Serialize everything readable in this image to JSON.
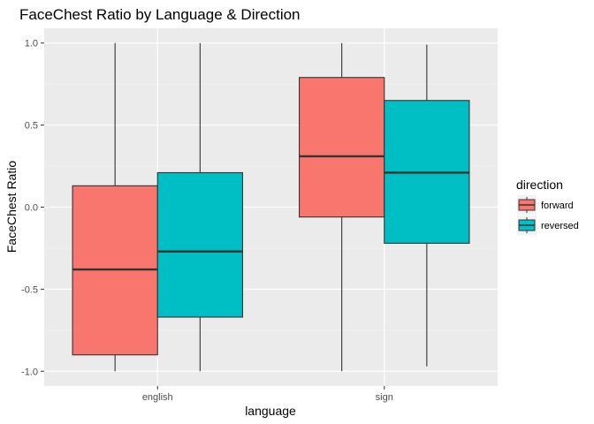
{
  "chart_data": {
    "type": "boxplot",
    "title": "FaceChest Ratio by Language & Direction",
    "xlabel": "language",
    "ylabel": "FaceChest Ratio",
    "categories": [
      "english",
      "sign"
    ],
    "ylim": [
      -1.09,
      1.09
    ],
    "yticks": [
      1.0,
      0.5,
      0.0,
      -0.5,
      -1.0
    ],
    "ytick_labels": [
      "1.0",
      "0.5",
      "0.0",
      "-0.5",
      "-1.0"
    ],
    "grid": true,
    "legend": {
      "title": "direction",
      "position": "right"
    },
    "series": [
      {
        "name": "forward",
        "color": "#F8766D",
        "boxes": [
          {
            "category": "english",
            "min": -1.0,
            "q1": -0.9,
            "median": -0.38,
            "q3": 0.13,
            "max": 1.0
          },
          {
            "category": "sign",
            "min": -1.0,
            "q1": -0.06,
            "median": 0.31,
            "q3": 0.79,
            "max": 1.0
          }
        ]
      },
      {
        "name": "reversed",
        "color": "#00BFC4",
        "boxes": [
          {
            "category": "english",
            "min": -1.0,
            "q1": -0.67,
            "median": -0.27,
            "q3": 0.21,
            "max": 1.0
          },
          {
            "category": "sign",
            "min": -0.97,
            "q1": -0.22,
            "median": 0.21,
            "q3": 0.65,
            "max": 0.99
          }
        ]
      }
    ]
  }
}
